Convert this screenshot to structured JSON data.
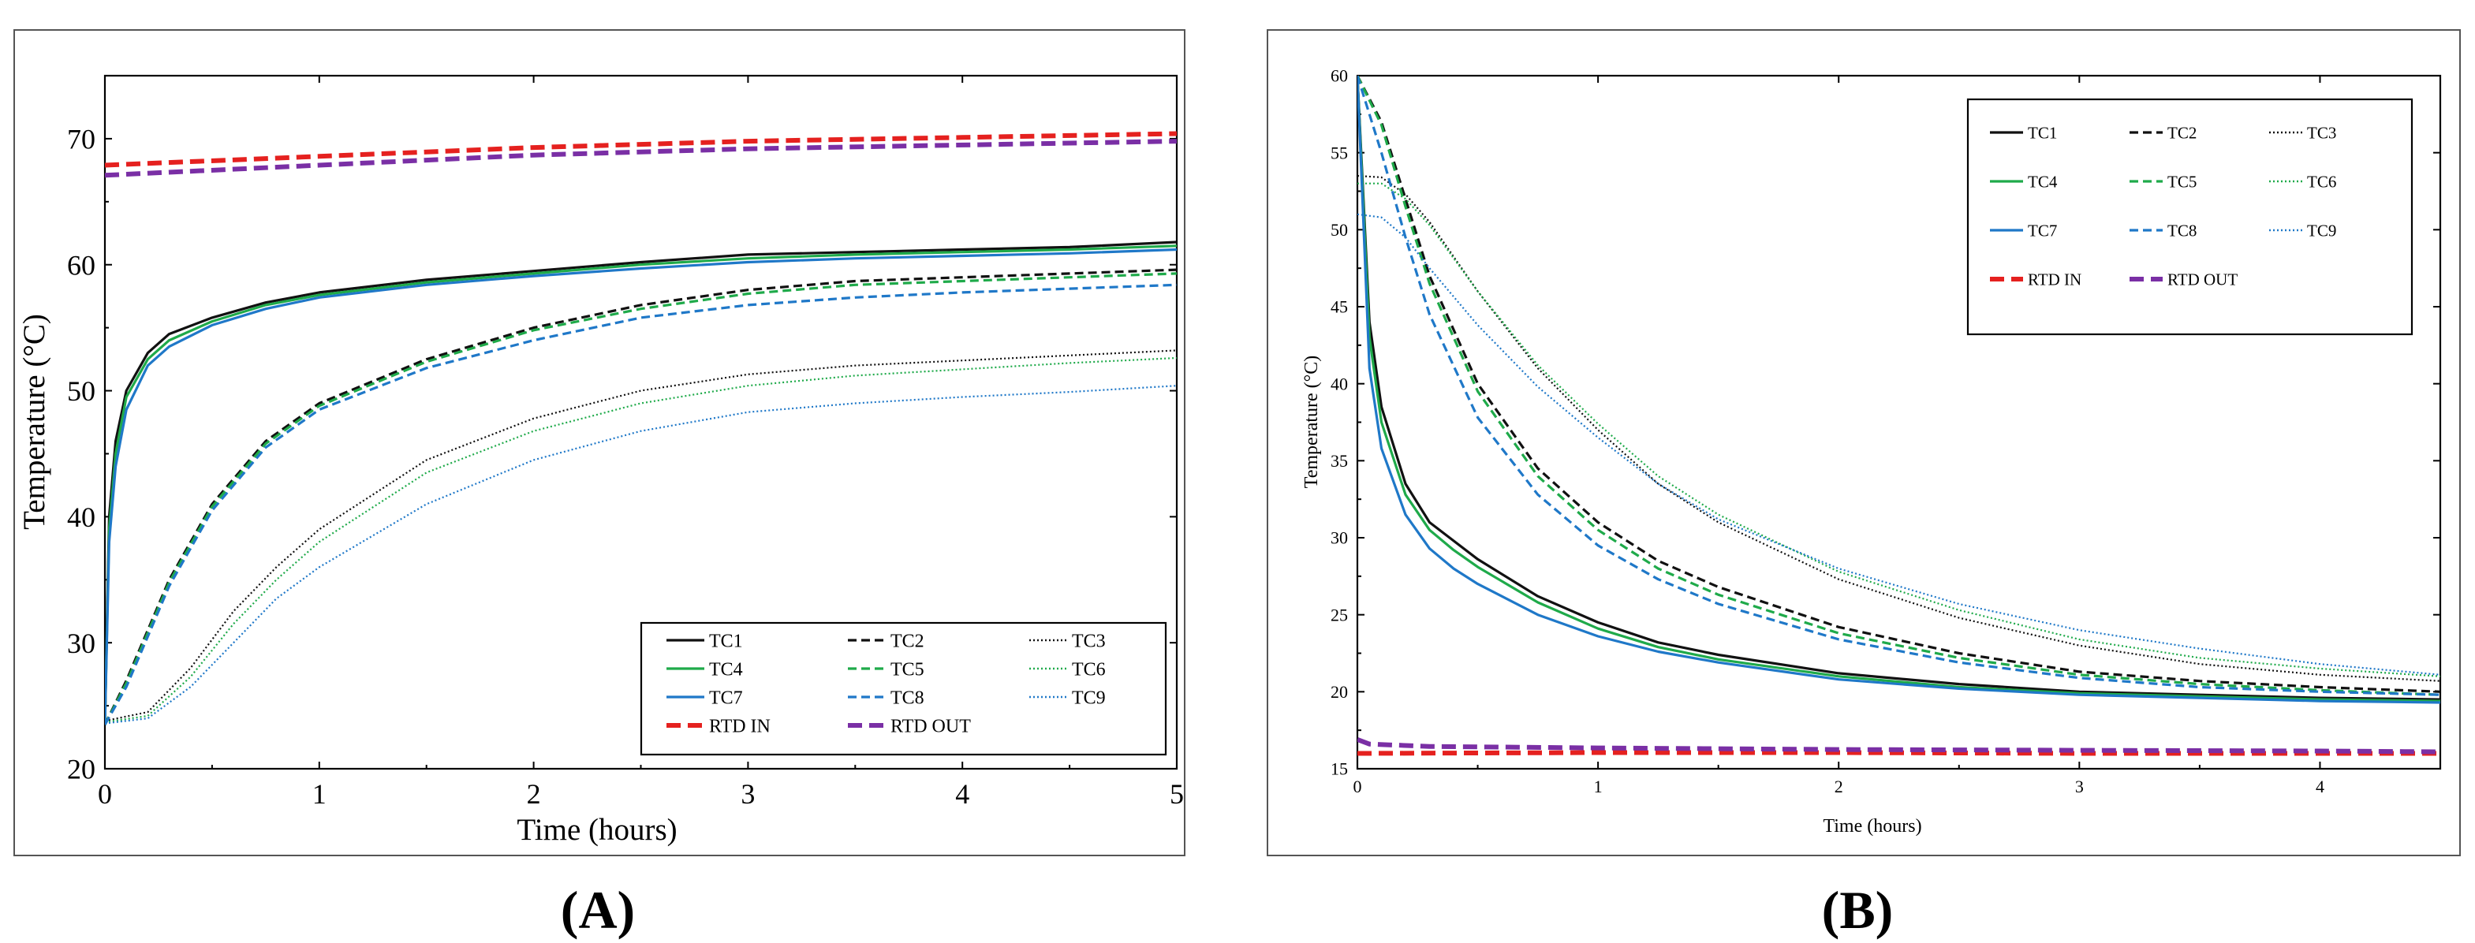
{
  "panel_labels": [
    "A",
    "B"
  ],
  "chart_data": [
    {
      "type": "line",
      "panel": "A",
      "title": "",
      "xlabel": "Time (hours)",
      "ylabel": "Temperature (°C)",
      "xlim": [
        0,
        5
      ],
      "ylim": [
        20,
        75
      ],
      "xticks": [
        "0",
        "1",
        "2",
        "3",
        "4",
        "5"
      ],
      "yticks": [
        "20",
        "30",
        "40",
        "50",
        "60",
        "70"
      ],
      "legend_position": "bottom-right",
      "series": [
        {
          "name": "TC1",
          "color": "#111111",
          "style": "solid",
          "x": [
            0,
            0.02,
            0.05,
            0.1,
            0.2,
            0.3,
            0.5,
            0.75,
            1,
            1.5,
            2,
            2.5,
            3,
            3.5,
            4,
            4.5,
            5
          ],
          "y": [
            23.5,
            40,
            46,
            50,
            53,
            54.5,
            55.8,
            57,
            57.8,
            58.8,
            59.5,
            60.2,
            60.8,
            61,
            61.2,
            61.4,
            61.8
          ]
        },
        {
          "name": "TC2",
          "color": "#111111",
          "style": "dash",
          "x": [
            0,
            0.1,
            0.2,
            0.3,
            0.5,
            0.75,
            1,
            1.5,
            2,
            2.5,
            3,
            3.5,
            4,
            4.5,
            5
          ],
          "y": [
            23.5,
            27,
            31,
            35,
            41,
            46,
            49,
            52.5,
            55,
            56.8,
            58,
            58.7,
            59,
            59.3,
            59.6
          ]
        },
        {
          "name": "TC3",
          "color": "#111111",
          "style": "dot",
          "x": [
            0,
            0.2,
            0.4,
            0.6,
            0.8,
            1,
            1.5,
            2,
            2.5,
            3,
            3.5,
            4,
            4.5,
            5
          ],
          "y": [
            23.8,
            24.5,
            28,
            32.5,
            36,
            39,
            44.5,
            47.8,
            50,
            51.3,
            52,
            52.4,
            52.8,
            53.2
          ]
        },
        {
          "name": "TC4",
          "color": "#1faa4a",
          "style": "solid",
          "x": [
            0,
            0.02,
            0.05,
            0.1,
            0.2,
            0.3,
            0.5,
            0.75,
            1,
            1.5,
            2,
            2.5,
            3,
            3.5,
            4,
            4.5,
            5
          ],
          "y": [
            23.5,
            39,
            45,
            49.5,
            52.5,
            54,
            55.5,
            56.8,
            57.6,
            58.6,
            59.3,
            60,
            60.5,
            60.8,
            61,
            61.2,
            61.5
          ]
        },
        {
          "name": "TC5",
          "color": "#1faa4a",
          "style": "dash",
          "x": [
            0,
            0.1,
            0.2,
            0.3,
            0.5,
            0.75,
            1,
            1.5,
            2,
            2.5,
            3,
            3.5,
            4,
            4.5,
            5
          ],
          "y": [
            23.5,
            26.8,
            30.8,
            34.8,
            40.8,
            45.8,
            48.8,
            52.3,
            54.8,
            56.5,
            57.7,
            58.4,
            58.7,
            59,
            59.3
          ]
        },
        {
          "name": "TC6",
          "color": "#1faa4a",
          "style": "dot",
          "x": [
            0,
            0.2,
            0.4,
            0.6,
            0.8,
            1,
            1.5,
            2,
            2.5,
            3,
            3.5,
            4,
            4.5,
            5
          ],
          "y": [
            23.7,
            24.2,
            27.3,
            31.5,
            35,
            38,
            43.5,
            46.8,
            49,
            50.4,
            51.2,
            51.7,
            52.2,
            52.6
          ]
        },
        {
          "name": "TC7",
          "color": "#1f78c8",
          "style": "solid",
          "x": [
            0,
            0.02,
            0.05,
            0.1,
            0.2,
            0.3,
            0.5,
            0.75,
            1,
            1.5,
            2,
            2.5,
            3,
            3.5,
            4,
            4.5,
            5
          ],
          "y": [
            23.5,
            38,
            44,
            48.5,
            52,
            53.5,
            55.2,
            56.5,
            57.4,
            58.4,
            59.1,
            59.7,
            60.2,
            60.5,
            60.7,
            60.9,
            61.2
          ]
        },
        {
          "name": "TC8",
          "color": "#1f78c8",
          "style": "dash",
          "x": [
            0,
            0.1,
            0.2,
            0.3,
            0.5,
            0.75,
            1,
            1.5,
            2,
            2.5,
            3,
            3.5,
            4,
            4.5,
            5
          ],
          "y": [
            23.5,
            26.5,
            30.5,
            34.5,
            40.5,
            45.5,
            48.5,
            51.8,
            54,
            55.8,
            56.8,
            57.4,
            57.8,
            58.1,
            58.4
          ]
        },
        {
          "name": "TC9",
          "color": "#1f78c8",
          "style": "dot",
          "x": [
            0,
            0.2,
            0.4,
            0.6,
            0.8,
            1,
            1.5,
            2,
            2.5,
            3,
            3.5,
            4,
            4.5,
            5
          ],
          "y": [
            23.6,
            24,
            26.5,
            30,
            33.5,
            36,
            41,
            44.5,
            46.8,
            48.3,
            49,
            49.5,
            49.9,
            50.4
          ]
        },
        {
          "name": "RTD IN",
          "color": "#e5211f",
          "style": "thickdash",
          "x": [
            0,
            1,
            2,
            3,
            4,
            5
          ],
          "y": [
            67.9,
            68.6,
            69.3,
            69.8,
            70.1,
            70.4
          ]
        },
        {
          "name": "RTD OUT",
          "color": "#7a2fa5",
          "style": "thickdash",
          "x": [
            0,
            1,
            2,
            3,
            4,
            5
          ],
          "y": [
            67.1,
            67.9,
            68.7,
            69.2,
            69.5,
            69.8
          ]
        }
      ]
    },
    {
      "type": "line",
      "panel": "B",
      "title": "",
      "xlabel": "Time (hours)",
      "ylabel": "Temperature (°C)",
      "xlim": [
        0,
        4.5
      ],
      "ylim": [
        15,
        60
      ],
      "xticks": [
        "0",
        "1",
        "2",
        "3",
        "4"
      ],
      "yticks": [
        "15",
        "20",
        "25",
        "30",
        "35",
        "40",
        "45",
        "50",
        "55",
        "60"
      ],
      "legend_position": "top-right",
      "series": [
        {
          "name": "TC1",
          "color": "#111111",
          "style": "solid",
          "x": [
            0,
            0.05,
            0.1,
            0.2,
            0.3,
            0.4,
            0.5,
            0.75,
            1,
            1.25,
            1.5,
            2,
            2.5,
            3,
            3.5,
            4,
            4.5
          ],
          "y": [
            60,
            44,
            38.5,
            33.5,
            31,
            29.8,
            28.6,
            26.2,
            24.5,
            23.2,
            22.4,
            21.2,
            20.5,
            20,
            19.8,
            19.6,
            19.5
          ]
        },
        {
          "name": "TC2",
          "color": "#111111",
          "style": "dash",
          "x": [
            0,
            0.1,
            0.2,
            0.3,
            0.5,
            0.75,
            1,
            1.25,
            1.5,
            2,
            2.5,
            3,
            3.5,
            4,
            4.5
          ],
          "y": [
            60,
            57,
            52,
            47,
            40,
            34.5,
            31,
            28.5,
            26.8,
            24.2,
            22.5,
            21.3,
            20.7,
            20.3,
            20
          ]
        },
        {
          "name": "TC3",
          "color": "#111111",
          "style": "dot",
          "x": [
            0,
            0.1,
            0.2,
            0.3,
            0.5,
            0.75,
            1,
            1.25,
            1.5,
            2,
            2.5,
            3,
            3.5,
            4,
            4.5
          ],
          "y": [
            53.5,
            53.4,
            52.3,
            50.5,
            46,
            41,
            37,
            33.5,
            31,
            27.3,
            24.8,
            23,
            21.8,
            21.1,
            20.7
          ]
        },
        {
          "name": "TC4",
          "color": "#1faa4a",
          "style": "solid",
          "x": [
            0,
            0.05,
            0.1,
            0.2,
            0.3,
            0.4,
            0.5,
            0.75,
            1,
            1.25,
            1.5,
            2,
            2.5,
            3,
            3.5,
            4,
            4.5
          ],
          "y": [
            60,
            43,
            37.5,
            32.8,
            30.5,
            29.2,
            28.1,
            25.8,
            24.1,
            22.9,
            22.1,
            21,
            20.3,
            19.9,
            19.7,
            19.5,
            19.4
          ]
        },
        {
          "name": "TC5",
          "color": "#1faa4a",
          "style": "dash",
          "x": [
            0,
            0.1,
            0.2,
            0.3,
            0.5,
            0.75,
            1,
            1.25,
            1.5,
            2,
            2.5,
            3,
            3.5,
            4,
            4.5
          ],
          "y": [
            60,
            56.8,
            51.5,
            46.5,
            39.5,
            34,
            30.5,
            28,
            26.3,
            23.8,
            22.2,
            21.1,
            20.5,
            20.1,
            19.8
          ]
        },
        {
          "name": "TC6",
          "color": "#1faa4a",
          "style": "dot",
          "x": [
            0,
            0.1,
            0.2,
            0.3,
            0.5,
            0.75,
            1,
            1.25,
            1.5,
            2,
            2.5,
            3,
            3.5,
            4,
            4.5
          ],
          "y": [
            53,
            53,
            52,
            50.3,
            46,
            41.2,
            37.4,
            34,
            31.5,
            27.8,
            25.3,
            23.4,
            22.2,
            21.5,
            21
          ]
        },
        {
          "name": "TC7",
          "color": "#1f78c8",
          "style": "solid",
          "x": [
            0,
            0.05,
            0.1,
            0.2,
            0.3,
            0.4,
            0.5,
            0.75,
            1,
            1.25,
            1.5,
            2,
            2.5,
            3,
            3.5,
            4,
            4.5
          ],
          "y": [
            60,
            41,
            35.8,
            31.5,
            29.3,
            28,
            27,
            25,
            23.6,
            22.6,
            21.9,
            20.8,
            20.2,
            19.8,
            19.6,
            19.4,
            19.3
          ]
        },
        {
          "name": "TC8",
          "color": "#1f78c8",
          "style": "dash",
          "x": [
            0,
            0.1,
            0.2,
            0.3,
            0.5,
            0.75,
            1,
            1.25,
            1.5,
            2,
            2.5,
            3,
            3.5,
            4,
            4.5
          ],
          "y": [
            60,
            55,
            49.5,
            44.5,
            37.8,
            32.8,
            29.5,
            27.3,
            25.7,
            23.4,
            21.9,
            20.9,
            20.3,
            20,
            19.8
          ]
        },
        {
          "name": "TC9",
          "color": "#1f78c8",
          "style": "dot",
          "x": [
            0,
            0.1,
            0.2,
            0.3,
            0.5,
            0.75,
            1,
            1.25,
            1.5,
            2,
            2.5,
            3,
            3.5,
            4,
            4.5
          ],
          "y": [
            51,
            50.8,
            49.5,
            47.5,
            43.8,
            39.8,
            36.5,
            33.5,
            31.2,
            28,
            25.7,
            24,
            22.8,
            21.8,
            21.1
          ]
        },
        {
          "name": "RTD IN",
          "color": "#e5211f",
          "style": "thickdash",
          "x": [
            0,
            1,
            2,
            3,
            4,
            4.5
          ],
          "y": [
            16,
            16.05,
            16.05,
            16,
            16,
            16
          ]
        },
        {
          "name": "RTD OUT",
          "color": "#7a2fa5",
          "style": "thickdash",
          "x": [
            0,
            0.05,
            0.3,
            1,
            2,
            3,
            4,
            4.5
          ],
          "y": [
            16.9,
            16.6,
            16.45,
            16.35,
            16.25,
            16.2,
            16.15,
            16.1
          ]
        }
      ]
    }
  ]
}
